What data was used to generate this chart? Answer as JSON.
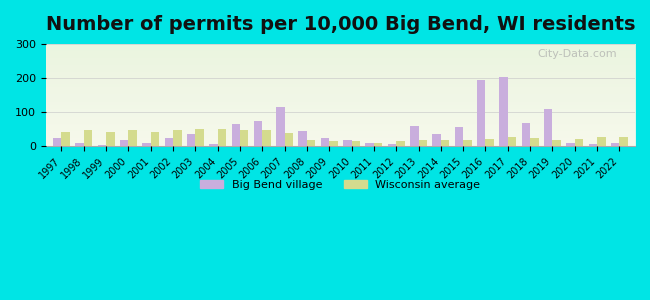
{
  "years": [
    1997,
    1998,
    1999,
    2000,
    2001,
    2002,
    2003,
    2004,
    2005,
    2006,
    2007,
    2008,
    2009,
    2010,
    2011,
    2012,
    2013,
    2014,
    2015,
    2016,
    2017,
    2018,
    2019,
    2020,
    2021,
    2022
  ],
  "big_bend": [
    25,
    10,
    5,
    18,
    10,
    25,
    35,
    8,
    65,
    75,
    115,
    45,
    25,
    18,
    10,
    8,
    60,
    35,
    58,
    195,
    202,
    68,
    110,
    10,
    8,
    10
  ],
  "wisconsin": [
    42,
    48,
    42,
    48,
    42,
    47,
    52,
    52,
    47,
    47,
    38,
    20,
    15,
    15,
    10,
    15,
    18,
    18,
    18,
    22,
    28,
    25,
    20,
    22,
    28,
    28
  ],
  "big_bend_color": "#c9aedd",
  "wisconsin_color": "#d4db8e",
  "title": "Number of permits per 10,000 Big Bend, WI residents",
  "title_fontsize": 14,
  "background_color": "#00e5e5",
  "ylim": [
    0,
    300
  ],
  "yticks": [
    0,
    100,
    200,
    300
  ],
  "legend_labels": [
    "Big Bend village",
    "Wisconsin average"
  ],
  "watermark": "City-Data.com"
}
